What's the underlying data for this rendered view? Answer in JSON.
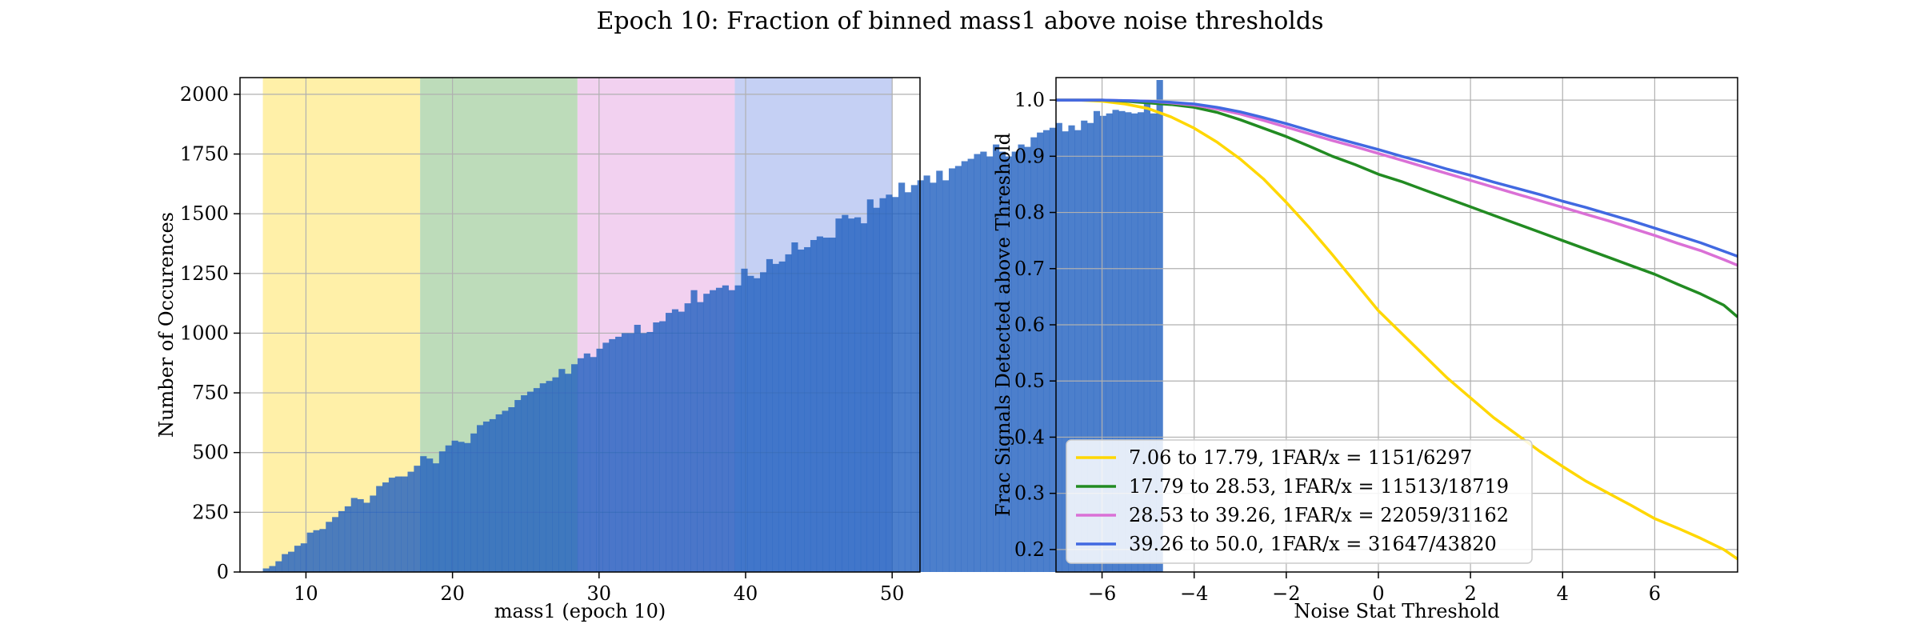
{
  "figure": {
    "suptitle": "Epoch 10: Fraction of binned mass1 above noise thresholds"
  },
  "chart_data": [
    {
      "type": "bar",
      "xlabel": "mass1 (epoch 10)",
      "ylabel": "Number of Occurences",
      "xlim": [
        5.5,
        51.9
      ],
      "ylim": [
        0,
        2070
      ],
      "xticks": [
        10,
        20,
        30,
        40,
        50
      ],
      "yticks": [
        0,
        250,
        500,
        750,
        1000,
        1250,
        1500,
        1750,
        2000
      ],
      "grid": true,
      "bin_start": 7.06,
      "bin_width": 0.4294,
      "counts": [
        15,
        25,
        45,
        75,
        85,
        110,
        120,
        165,
        175,
        180,
        210,
        230,
        255,
        275,
        310,
        305,
        290,
        320,
        360,
        375,
        395,
        400,
        400,
        420,
        445,
        485,
        475,
        455,
        505,
        530,
        550,
        545,
        540,
        580,
        615,
        630,
        640,
        660,
        675,
        690,
        720,
        740,
        755,
        770,
        790,
        800,
        815,
        850,
        830,
        870,
        895,
        915,
        900,
        935,
        960,
        975,
        985,
        1000,
        1000,
        1035,
        1000,
        1005,
        1045,
        1050,
        1085,
        1100,
        1090,
        1125,
        1180,
        1130,
        1165,
        1180,
        1190,
        1200,
        1180,
        1200,
        1270,
        1240,
        1230,
        1255,
        1310,
        1290,
        1300,
        1330,
        1380,
        1350,
        1360,
        1390,
        1405,
        1400,
        1400,
        1480,
        1495,
        1480,
        1485,
        1460,
        1560,
        1525,
        1565,
        1580,
        1570,
        1630,
        1590,
        1620,
        1640,
        1660,
        1630,
        1680,
        1640,
        1690,
        1700,
        1720,
        1730,
        1750,
        1760,
        1740,
        1790,
        1760,
        1740,
        1760,
        1790,
        1780,
        1820,
        1840,
        1850,
        1860,
        1880,
        1845,
        1870,
        1850,
        1890,
        1880,
        1930,
        1910,
        1920,
        1935,
        1930,
        1925,
        1920,
        1925,
        1970,
        1920,
        2060
      ],
      "bins": [
        {
          "range": [
            7.06,
            17.79
          ],
          "color": "#fff0a8"
        },
        {
          "range": [
            17.79,
            28.53
          ],
          "color": "#bddcba"
        },
        {
          "range": [
            28.53,
            39.26
          ],
          "color": "#f2d1f0"
        },
        {
          "range": [
            39.26,
            50.0
          ],
          "color": "#c5d0f4"
        }
      ],
      "bar_color": "#1f5fbf",
      "bar_opacity": 0.8
    },
    {
      "type": "line",
      "xlabel": "Noise Stat Threshold",
      "ylabel": "Frac Signals Detected above Threshold",
      "xlim": [
        -7,
        7.8
      ],
      "ylim": [
        0.16,
        1.04
      ],
      "xticks": [
        -6,
        -4,
        -2,
        0,
        2,
        4,
        6
      ],
      "yticks": [
        0.2,
        0.3,
        0.4,
        0.5,
        0.6,
        0.7,
        0.8,
        0.9,
        1.0
      ],
      "grid": true,
      "legend_position": "lower-left",
      "series": [
        {
          "name": "7.06 to 17.79, 1FAR/x = 1151/6297",
          "color": "#ffd700",
          "x": [
            -7,
            -6.5,
            -6,
            -5.5,
            -5,
            -4.5,
            -4,
            -3.5,
            -3,
            -2.5,
            -2,
            -1.5,
            -1,
            -0.5,
            0,
            0.5,
            1,
            1.5,
            2,
            2.5,
            3,
            3.5,
            4,
            4.5,
            5,
            5.5,
            6,
            6.5,
            7,
            7.5,
            7.8
          ],
          "y": [
            1.0,
            1.0,
            0.998,
            0.993,
            0.985,
            0.97,
            0.95,
            0.925,
            0.895,
            0.86,
            0.818,
            0.773,
            0.725,
            0.675,
            0.625,
            0.585,
            0.545,
            0.505,
            0.47,
            0.435,
            0.405,
            0.375,
            0.348,
            0.322,
            0.3,
            0.278,
            0.255,
            0.238,
            0.22,
            0.2,
            0.183
          ]
        },
        {
          "name": "17.79 to 28.53, 1FAR/x = 11513/18719",
          "color": "#228b22",
          "x": [
            -7,
            -6.5,
            -6,
            -5.5,
            -5,
            -4.5,
            -4,
            -3.5,
            -3,
            -2.5,
            -2,
            -1.5,
            -1,
            -0.5,
            0,
            0.5,
            1,
            1.5,
            2,
            2.5,
            3,
            3.5,
            4,
            4.5,
            5,
            5.5,
            6,
            6.5,
            7,
            7.5,
            7.8
          ],
          "y": [
            1.0,
            1.0,
            1.0,
            0.998,
            0.995,
            0.992,
            0.987,
            0.978,
            0.965,
            0.95,
            0.935,
            0.918,
            0.9,
            0.885,
            0.868,
            0.855,
            0.84,
            0.825,
            0.81,
            0.795,
            0.78,
            0.765,
            0.75,
            0.735,
            0.72,
            0.705,
            0.69,
            0.672,
            0.655,
            0.635,
            0.614
          ]
        },
        {
          "name": "28.53 to 39.26, 1FAR/x = 22059/31162",
          "color": "#da70d6",
          "x": [
            -7,
            -6.5,
            -6,
            -5.5,
            -5,
            -4.5,
            -4,
            -3.5,
            -3,
            -2.5,
            -2,
            -1.5,
            -1,
            -0.5,
            0,
            0.5,
            1,
            1.5,
            2,
            2.5,
            3,
            3.5,
            4,
            4.5,
            5,
            5.5,
            6,
            6.5,
            7,
            7.5,
            7.8
          ],
          "y": [
            1.0,
            1.0,
            1.0,
            0.999,
            0.998,
            0.995,
            0.991,
            0.984,
            0.975,
            0.964,
            0.952,
            0.94,
            0.928,
            0.917,
            0.905,
            0.893,
            0.881,
            0.869,
            0.857,
            0.845,
            0.833,
            0.821,
            0.809,
            0.797,
            0.785,
            0.772,
            0.759,
            0.745,
            0.732,
            0.716,
            0.706
          ]
        },
        {
          "name": "39.26 to 50.0, 1FAR/x = 31647/43820",
          "color": "#4169e1",
          "x": [
            -7,
            -6.5,
            -6,
            -5.5,
            -5,
            -4.5,
            -4,
            -3.5,
            -3,
            -2.5,
            -2,
            -1.5,
            -1,
            -0.5,
            0,
            0.5,
            1,
            1.5,
            2,
            2.5,
            3,
            3.5,
            4,
            4.5,
            5,
            5.5,
            6,
            6.5,
            7,
            7.5,
            7.8
          ],
          "y": [
            1.0,
            1.0,
            1.0,
            0.999,
            0.998,
            0.996,
            0.993,
            0.987,
            0.979,
            0.969,
            0.958,
            0.946,
            0.934,
            0.923,
            0.912,
            0.9,
            0.889,
            0.877,
            0.866,
            0.854,
            0.843,
            0.832,
            0.82,
            0.809,
            0.797,
            0.785,
            0.772,
            0.759,
            0.746,
            0.731,
            0.722
          ]
        }
      ]
    }
  ]
}
